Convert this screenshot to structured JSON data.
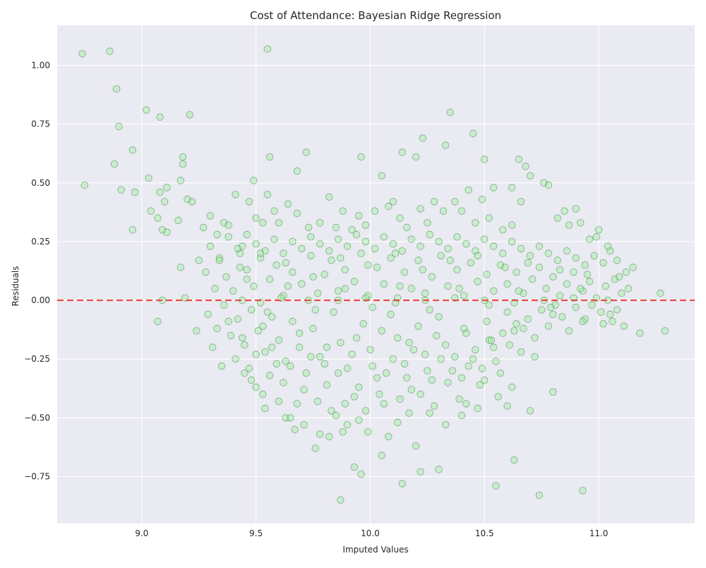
{
  "chart_data": {
    "type": "scatter",
    "title": "Cost of Attendance: Bayesian Ridge Regression",
    "xlabel": "Imputed Values",
    "ylabel": "Residuals",
    "xlim": [
      8.63,
      11.42
    ],
    "ylim": [
      -0.95,
      1.17
    ],
    "x_ticks": [
      9.0,
      9.5,
      10.0,
      10.5,
      11.0
    ],
    "x_tick_labels": [
      "9.0",
      "9.5",
      "10.0",
      "10.5",
      "11.0"
    ],
    "y_ticks": [
      -0.75,
      -0.5,
      -0.25,
      0.0,
      0.25,
      0.5,
      0.75,
      1.0
    ],
    "y_tick_labels": [
      "−0.75",
      "−0.50",
      "−0.25",
      "0.00",
      "0.25",
      "0.50",
      "0.75",
      "1.00"
    ],
    "grid": true,
    "background": "#eaeaf2",
    "marker_fill": "#90ee90",
    "marker_edge": "#2e7d32",
    "marker_opacity": 0.35,
    "reference_line": {
      "y": 0.0,
      "color": "#e74c3c",
      "style": "dashed"
    },
    "points": [
      [
        8.74,
        1.05
      ],
      [
        8.86,
        1.06
      ],
      [
        8.89,
        0.9
      ],
      [
        8.9,
        0.74
      ],
      [
        8.96,
        0.64
      ],
      [
        9.02,
        0.81
      ],
      [
        9.08,
        0.78
      ],
      [
        9.21,
        0.79
      ],
      [
        9.55,
        1.07
      ],
      [
        8.75,
        0.49
      ],
      [
        8.88,
        0.58
      ],
      [
        8.91,
        0.47
      ],
      [
        8.97,
        0.46
      ],
      [
        9.03,
        0.52
      ],
      [
        9.08,
        0.46
      ],
      [
        9.1,
        0.42
      ],
      [
        9.11,
        0.48
      ],
      [
        9.17,
        0.51
      ],
      [
        9.18,
        0.58
      ],
      [
        9.18,
        0.61
      ],
      [
        8.96,
        0.3
      ],
      [
        9.04,
        0.38
      ],
      [
        9.07,
        0.35
      ],
      [
        9.09,
        0.3
      ],
      [
        9.11,
        0.29
      ],
      [
        9.16,
        0.34
      ],
      [
        9.2,
        0.43
      ],
      [
        9.22,
        0.42
      ],
      [
        9.07,
        -0.09
      ],
      [
        9.09,
        0.0
      ],
      [
        9.17,
        0.14
      ],
      [
        9.19,
        0.01
      ],
      [
        9.24,
        -0.13
      ],
      [
        9.25,
        0.17
      ],
      [
        9.49,
        0.51
      ],
      [
        9.56,
        0.61
      ],
      [
        9.68,
        0.55
      ],
      [
        9.72,
        0.63
      ],
      [
        9.96,
        0.61
      ],
      [
        10.05,
        0.53
      ],
      [
        10.14,
        0.63
      ],
      [
        10.2,
        0.61
      ],
      [
        10.23,
        0.69
      ],
      [
        10.33,
        0.66
      ],
      [
        10.35,
        0.8
      ],
      [
        10.45,
        0.71
      ],
      [
        10.5,
        0.6
      ],
      [
        10.65,
        0.6
      ],
      [
        10.68,
        0.57
      ],
      [
        10.7,
        0.53
      ],
      [
        10.76,
        0.5
      ],
      [
        10.78,
        0.49
      ],
      [
        10.54,
        0.48
      ],
      [
        10.62,
        0.48
      ],
      [
        9.87,
        -0.85
      ],
      [
        9.93,
        -0.71
      ],
      [
        9.96,
        -0.74
      ],
      [
        10.14,
        -0.78
      ],
      [
        10.3,
        -0.72
      ],
      [
        10.55,
        -0.79
      ],
      [
        10.63,
        -0.68
      ],
      [
        10.74,
        -0.83
      ],
      [
        10.93,
        -0.81
      ],
      [
        10.2,
        -0.62
      ],
      [
        10.22,
        -0.73
      ],
      [
        10.05,
        -0.66
      ],
      [
        9.76,
        -0.63
      ],
      [
        11.0,
        0.3
      ],
      [
        11.05,
        0.21
      ],
      [
        11.12,
        0.12
      ],
      [
        11.18,
        -0.14
      ],
      [
        11.27,
        0.03
      ],
      [
        11.29,
        -0.13
      ],
      [
        11.11,
        -0.11
      ],
      [
        11.02,
        -0.1
      ],
      [
        10.9,
        0.39
      ],
      [
        10.85,
        0.38
      ],
      [
        10.8,
        -0.39
      ],
      [
        10.7,
        -0.47
      ],
      [
        10.72,
        -0.24
      ],
      [
        9.45,
        -0.31
      ],
      [
        9.5,
        -0.37
      ],
      [
        9.53,
        -0.4
      ],
      [
        9.54,
        -0.46
      ],
      [
        9.6,
        -0.43
      ],
      [
        9.63,
        -0.5
      ],
      [
        9.65,
        -0.5
      ],
      [
        9.67,
        -0.55
      ],
      [
        9.71,
        -0.53
      ],
      [
        9.78,
        -0.57
      ],
      [
        9.82,
        -0.58
      ],
      [
        9.85,
        -0.49
      ],
      [
        9.88,
        -0.56
      ],
      [
        9.9,
        -0.53
      ],
      [
        9.95,
        -0.51
      ],
      [
        9.99,
        -0.56
      ],
      [
        10.08,
        -0.58
      ],
      [
        10.12,
        -0.52
      ],
      [
        10.17,
        -0.48
      ],
      [
        10.26,
        -0.48
      ],
      [
        10.33,
        -0.53
      ],
      [
        10.4,
        -0.49
      ],
      [
        10.42,
        -0.44
      ],
      [
        10.47,
        -0.46
      ],
      [
        10.5,
        -0.34
      ],
      [
        10.56,
        -0.41
      ],
      [
        10.6,
        -0.45
      ],
      [
        10.62,
        -0.37
      ],
      [
        9.27,
        0.31
      ],
      [
        9.3,
        0.36
      ],
      [
        9.33,
        0.28
      ],
      [
        9.36,
        0.33
      ],
      [
        9.38,
        0.32
      ],
      [
        9.41,
        0.45
      ],
      [
        9.44,
        0.23
      ],
      [
        9.47,
        0.42
      ],
      [
        9.5,
        0.35
      ],
      [
        9.53,
        0.33
      ],
      [
        9.55,
        0.45
      ],
      [
        9.58,
        0.38
      ],
      [
        9.6,
        0.33
      ],
      [
        9.64,
        0.41
      ],
      [
        9.68,
        0.37
      ],
      [
        9.73,
        0.31
      ],
      [
        9.78,
        0.33
      ],
      [
        9.82,
        0.44
      ],
      [
        9.85,
        0.31
      ],
      [
        9.88,
        0.38
      ],
      [
        9.92,
        0.3
      ],
      [
        9.95,
        0.36
      ],
      [
        9.98,
        0.32
      ],
      [
        10.02,
        0.38
      ],
      [
        10.08,
        0.4
      ],
      [
        10.1,
        0.42
      ],
      [
        10.13,
        0.35
      ],
      [
        10.16,
        0.31
      ],
      [
        10.22,
        0.39
      ],
      [
        10.25,
        0.33
      ],
      [
        10.28,
        0.42
      ],
      [
        10.32,
        0.38
      ],
      [
        10.37,
        0.42
      ],
      [
        10.4,
        0.38
      ],
      [
        10.43,
        0.47
      ],
      [
        10.46,
        0.33
      ],
      [
        10.49,
        0.43
      ],
      [
        10.52,
        0.35
      ],
      [
        10.58,
        0.3
      ],
      [
        10.62,
        0.32
      ],
      [
        10.66,
        0.42
      ],
      [
        10.82,
        0.35
      ],
      [
        10.87,
        0.32
      ],
      [
        10.92,
        0.33
      ],
      [
        10.96,
        0.26
      ],
      [
        10.99,
        0.27
      ],
      [
        11.04,
        0.23
      ],
      [
        11.08,
        0.17
      ],
      [
        11.15,
        0.14
      ],
      [
        9.28,
        0.12
      ],
      [
        9.32,
        0.05
      ],
      [
        9.34,
        0.18
      ],
      [
        9.37,
        0.1
      ],
      [
        9.4,
        0.04
      ],
      [
        9.43,
        0.2
      ],
      [
        9.46,
        0.13
      ],
      [
        9.49,
        0.06
      ],
      [
        9.52,
        0.18
      ],
      [
        9.56,
        0.09
      ],
      [
        9.59,
        0.15
      ],
      [
        9.62,
        0.02
      ],
      [
        9.66,
        0.12
      ],
      [
        9.7,
        0.07
      ],
      [
        9.74,
        0.19
      ],
      [
        9.77,
        0.03
      ],
      [
        9.8,
        0.11
      ],
      [
        9.83,
        0.17
      ],
      [
        9.86,
        0.04
      ],
      [
        9.89,
        0.13
      ],
      [
        9.93,
        0.08
      ],
      [
        9.96,
        0.2
      ],
      [
        9.99,
        0.02
      ],
      [
        10.03,
        0.14
      ],
      [
        10.06,
        0.07
      ],
      [
        10.09,
        0.18
      ],
      [
        10.12,
        0.01
      ],
      [
        10.15,
        0.12
      ],
      [
        10.18,
        0.05
      ],
      [
        10.21,
        0.17
      ],
      [
        10.24,
        0.03
      ],
      [
        10.27,
        0.1
      ],
      [
        10.31,
        0.19
      ],
      [
        10.34,
        0.06
      ],
      [
        10.38,
        0.13
      ],
      [
        10.41,
        0.02
      ],
      [
        10.44,
        0.16
      ],
      [
        10.47,
        0.08
      ],
      [
        10.51,
        0.11
      ],
      [
        10.54,
        0.04
      ],
      [
        10.57,
        0.15
      ],
      [
        10.6,
        0.07
      ],
      [
        10.64,
        0.12
      ],
      [
        10.67,
        0.03
      ],
      [
        10.71,
        0.09
      ],
      [
        10.74,
        0.14
      ],
      [
        10.77,
        0.05
      ],
      [
        10.8,
        0.1
      ],
      [
        10.83,
        0.02
      ],
      [
        10.86,
        0.07
      ],
      [
        10.89,
        0.12
      ],
      [
        10.93,
        0.04
      ],
      [
        10.96,
        0.08
      ],
      [
        10.99,
        0.01
      ],
      [
        11.03,
        0.06
      ],
      [
        11.07,
        0.09
      ],
      [
        11.1,
        0.03
      ],
      [
        11.13,
        0.05
      ],
      [
        9.29,
        -0.06
      ],
      [
        9.33,
        -0.12
      ],
      [
        9.36,
        -0.02
      ],
      [
        9.39,
        -0.15
      ],
      [
        9.42,
        -0.08
      ],
      [
        9.45,
        -0.19
      ],
      [
        9.48,
        -0.04
      ],
      [
        9.51,
        -0.13
      ],
      [
        9.54,
        -0.22
      ],
      [
        9.57,
        -0.07
      ],
      [
        9.6,
        -0.17
      ],
      [
        9.63,
        -0.26
      ],
      [
        9.66,
        -0.09
      ],
      [
        9.69,
        -0.2
      ],
      [
        9.72,
        -0.31
      ],
      [
        9.75,
        -0.12
      ],
      [
        9.78,
        -0.24
      ],
      [
        9.81,
        -0.36
      ],
      [
        9.84,
        -0.05
      ],
      [
        9.87,
        -0.18
      ],
      [
        9.9,
        -0.29
      ],
      [
        9.93,
        -0.41
      ],
      [
        9.97,
        -0.1
      ],
      [
        10.0,
        -0.21
      ],
      [
        10.03,
        -0.33
      ],
      [
        10.06,
        -0.44
      ],
      [
        10.09,
        -0.06
      ],
      [
        10.12,
        -0.16
      ],
      [
        10.15,
        -0.27
      ],
      [
        10.18,
        -0.38
      ],
      [
        10.21,
        -0.11
      ],
      [
        10.24,
        -0.23
      ],
      [
        10.27,
        -0.34
      ],
      [
        10.3,
        -0.07
      ],
      [
        10.33,
        -0.19
      ],
      [
        10.36,
        -0.3
      ],
      [
        10.39,
        -0.42
      ],
      [
        10.42,
        -0.14
      ],
      [
        10.45,
        -0.25
      ],
      [
        10.48,
        -0.36
      ],
      [
        10.51,
        -0.09
      ],
      [
        10.54,
        -0.2
      ],
      [
        10.57,
        -0.31
      ],
      [
        10.6,
        -0.05
      ],
      [
        10.63,
        -0.13
      ],
      [
        10.66,
        -0.22
      ],
      [
        10.69,
        -0.08
      ],
      [
        10.72,
        -0.16
      ],
      [
        10.75,
        -0.04
      ],
      [
        10.78,
        -0.11
      ],
      [
        10.81,
        -0.02
      ],
      [
        10.84,
        -0.07
      ],
      [
        10.87,
        -0.13
      ],
      [
        10.9,
        -0.03
      ],
      [
        10.94,
        -0.08
      ],
      [
        10.97,
        -0.02
      ],
      [
        11.01,
        -0.05
      ],
      [
        11.06,
        -0.09
      ],
      [
        9.31,
        -0.2
      ],
      [
        9.35,
        -0.28
      ],
      [
        9.38,
        -0.09
      ],
      [
        9.41,
        -0.25
      ],
      [
        9.44,
        -0.16
      ],
      [
        9.47,
        -0.29
      ],
      [
        9.5,
        -0.23
      ],
      [
        9.53,
        -0.11
      ],
      [
        9.56,
        -0.32
      ],
      [
        9.59,
        -0.27
      ],
      [
        9.62,
        -0.35
      ],
      [
        9.65,
        -0.28
      ],
      [
        9.68,
        -0.44
      ],
      [
        9.71,
        -0.38
      ],
      [
        9.74,
        -0.24
      ],
      [
        9.77,
        -0.43
      ],
      [
        9.8,
        -0.27
      ],
      [
        9.83,
        -0.47
      ],
      [
        9.86,
        -0.31
      ],
      [
        9.89,
        -0.44
      ],
      [
        9.92,
        -0.23
      ],
      [
        9.95,
        -0.37
      ],
      [
        9.98,
        -0.47
      ],
      [
        10.01,
        -0.28
      ],
      [
        10.04,
        -0.4
      ],
      [
        10.07,
        -0.31
      ],
      [
        10.1,
        -0.25
      ],
      [
        10.13,
        -0.42
      ],
      [
        10.16,
        -0.33
      ],
      [
        10.19,
        -0.21
      ],
      [
        10.22,
        -0.4
      ],
      [
        10.25,
        -0.3
      ],
      [
        10.28,
        -0.45
      ],
      [
        10.31,
        -0.25
      ],
      [
        10.34,
        -0.35
      ],
      [
        10.37,
        -0.24
      ],
      [
        10.4,
        -0.33
      ],
      [
        10.43,
        -0.28
      ],
      [
        10.46,
        -0.21
      ],
      [
        10.49,
        -0.29
      ],
      [
        10.52,
        -0.17
      ],
      [
        10.55,
        -0.26
      ],
      [
        10.58,
        -0.14
      ],
      [
        10.61,
        -0.19
      ],
      [
        10.64,
        -0.1
      ],
      [
        9.3,
        0.23
      ],
      [
        9.34,
        0.17
      ],
      [
        9.38,
        0.27
      ],
      [
        9.42,
        0.22
      ],
      [
        9.46,
        0.28
      ],
      [
        9.5,
        0.24
      ],
      [
        9.54,
        0.21
      ],
      [
        9.58,
        0.26
      ],
      [
        9.62,
        0.2
      ],
      [
        9.66,
        0.25
      ],
      [
        9.7,
        0.22
      ],
      [
        9.74,
        0.27
      ],
      [
        9.78,
        0.24
      ],
      [
        9.82,
        0.21
      ],
      [
        9.86,
        0.26
      ],
      [
        9.9,
        0.23
      ],
      [
        9.94,
        0.28
      ],
      [
        9.98,
        0.25
      ],
      [
        10.02,
        0.22
      ],
      [
        10.06,
        0.27
      ],
      [
        10.1,
        0.24
      ],
      [
        10.14,
        0.21
      ],
      [
        10.18,
        0.26
      ],
      [
        10.22,
        0.23
      ],
      [
        10.26,
        0.28
      ],
      [
        10.3,
        0.25
      ],
      [
        10.34,
        0.22
      ],
      [
        10.38,
        0.27
      ],
      [
        10.42,
        0.24
      ],
      [
        10.46,
        0.21
      ],
      [
        10.5,
        0.26
      ],
      [
        10.54,
        0.23
      ],
      [
        10.58,
        0.2
      ],
      [
        10.62,
        0.25
      ],
      [
        10.66,
        0.22
      ],
      [
        10.7,
        0.19
      ],
      [
        10.74,
        0.23
      ],
      [
        10.78,
        0.2
      ],
      [
        10.82,
        0.17
      ],
      [
        10.86,
        0.21
      ],
      [
        10.9,
        0.18
      ],
      [
        10.94,
        0.15
      ],
      [
        10.98,
        0.19
      ],
      [
        11.02,
        0.16
      ],
      [
        9.44,
        0.0
      ],
      [
        9.52,
        -0.01
      ],
      [
        9.61,
        0.01
      ],
      [
        9.73,
        0.0
      ],
      [
        9.86,
        0.0
      ],
      [
        9.98,
        0.01
      ],
      [
        10.11,
        -0.01
      ],
      [
        10.24,
        0.0
      ],
      [
        10.37,
        0.01
      ],
      [
        10.5,
        0.0
      ],
      [
        10.63,
        -0.01
      ],
      [
        10.76,
        0.0
      ],
      [
        10.89,
        0.01
      ],
      [
        11.04,
        0.0
      ],
      [
        9.46,
        0.09
      ],
      [
        9.55,
        -0.05
      ],
      [
        9.64,
        0.06
      ],
      [
        9.76,
        -0.04
      ],
      [
        9.89,
        0.05
      ],
      [
        10.01,
        -0.03
      ],
      [
        10.13,
        0.06
      ],
      [
        10.26,
        -0.04
      ],
      [
        10.39,
        0.05
      ],
      [
        10.52,
        -0.02
      ],
      [
        10.65,
        0.04
      ],
      [
        10.79,
        -0.03
      ],
      [
        10.92,
        0.05
      ],
      [
        11.08,
        -0.04
      ],
      [
        9.48,
        -0.34
      ],
      [
        9.57,
        -0.2
      ],
      [
        9.69,
        -0.14
      ],
      [
        9.81,
        -0.2
      ],
      [
        9.94,
        -0.16
      ],
      [
        10.05,
        -0.13
      ],
      [
        10.17,
        -0.18
      ],
      [
        10.29,
        -0.15
      ],
      [
        10.41,
        -0.12
      ],
      [
        10.53,
        -0.17
      ],
      [
        10.67,
        -0.12
      ],
      [
        10.8,
        -0.06
      ],
      [
        10.93,
        -0.09
      ],
      [
        11.05,
        -0.06
      ],
      [
        9.43,
        0.14
      ],
      [
        9.52,
        0.2
      ],
      [
        9.63,
        0.16
      ],
      [
        9.75,
        0.1
      ],
      [
        9.87,
        0.18
      ],
      [
        9.99,
        0.15
      ],
      [
        10.11,
        0.2
      ],
      [
        10.23,
        0.13
      ],
      [
        10.35,
        0.17
      ],
      [
        10.47,
        0.19
      ],
      [
        10.59,
        0.14
      ],
      [
        10.69,
        0.16
      ],
      [
        10.83,
        0.13
      ],
      [
        10.95,
        0.11
      ],
      [
        11.09,
        0.1
      ]
    ]
  }
}
